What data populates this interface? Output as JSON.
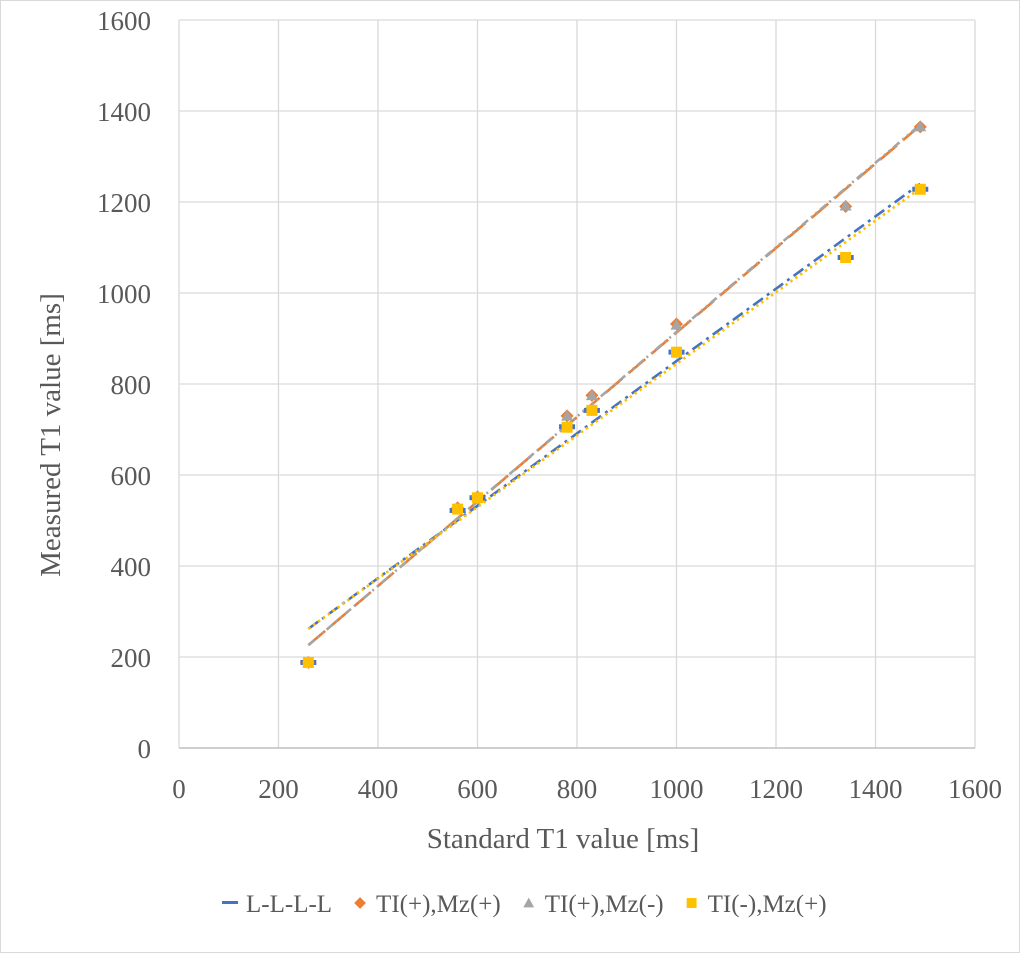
{
  "chart_data": {
    "type": "scatter",
    "title": "",
    "xlabel": "Standard T1 value [ms]",
    "ylabel": "Measured T1 value [ms]",
    "xlim": [
      0,
      1600
    ],
    "ylim": [
      0,
      1600
    ],
    "xticks": [
      0,
      200,
      400,
      600,
      800,
      1000,
      1200,
      1400,
      1600
    ],
    "yticks": [
      0,
      200,
      400,
      600,
      800,
      1000,
      1200,
      1400,
      1600
    ],
    "grid": true,
    "legend_position": "bottom",
    "series": [
      {
        "name": "L-L-L-L",
        "color": "#4472c4",
        "marker": "dash",
        "x": [
          260,
          560,
          600,
          780,
          830,
          1000,
          1340,
          1490
        ],
        "y": [
          188,
          522,
          550,
          706,
          742,
          870,
          1078,
          1228
        ],
        "trendline": {
          "x": [
            260,
            1490
          ],
          "y": [
            262,
            1240
          ],
          "style": "dash-dot"
        }
      },
      {
        "name": "TI(+),Mz(+)",
        "color": "#ed7d31",
        "marker": "diamond",
        "x": [
          260,
          560,
          600,
          780,
          830,
          1000,
          1340,
          1490
        ],
        "y": [
          188,
          528,
          552,
          730,
          775,
          932,
          1190,
          1365
        ],
        "trendline": {
          "x": [
            260,
            1490
          ],
          "y": [
            226,
            1368
          ],
          "style": "long-dash"
        }
      },
      {
        "name": "TI(+),Mz(-)",
        "color": "#a5a5a5",
        "marker": "triangle",
        "x": [
          260,
          560,
          600,
          780,
          830,
          1000,
          1340,
          1490
        ],
        "y": [
          188,
          528,
          552,
          730,
          775,
          930,
          1192,
          1366
        ],
        "trendline": {
          "x": [
            260,
            1490
          ],
          "y": [
            226,
            1370
          ],
          "style": "dash-dot-dot"
        }
      },
      {
        "name": "TI(-),Mz(+)",
        "color": "#ffc000",
        "marker": "square",
        "x": [
          260,
          560,
          600,
          780,
          830,
          1000,
          1340,
          1490
        ],
        "y": [
          188,
          525,
          550,
          705,
          742,
          870,
          1078,
          1228
        ],
        "trendline": {
          "x": [
            260,
            1490
          ],
          "y": [
            262,
            1230
          ],
          "style": "dotted"
        }
      }
    ]
  }
}
